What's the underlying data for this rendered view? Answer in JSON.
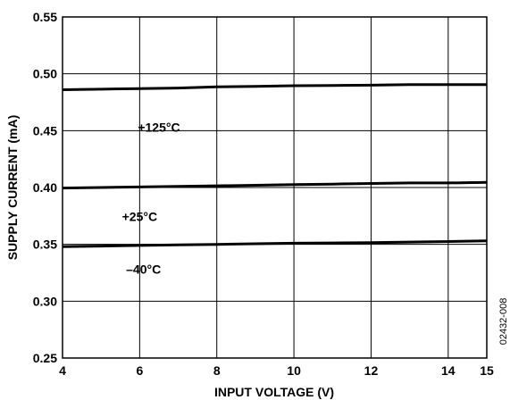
{
  "chart_data": {
    "type": "line",
    "xlabel": "INPUT VOLTAGE (V)",
    "ylabel": "SUPPLY CURRENT (mA)",
    "xlim": [
      4,
      15
    ],
    "ylim": [
      0.25,
      0.55
    ],
    "x_ticks": [
      4,
      6,
      8,
      10,
      12,
      14,
      15
    ],
    "x_tick_labels": [
      "4",
      "6",
      "8",
      "10",
      "12",
      "14",
      "15"
    ],
    "y_ticks": [
      0.25,
      0.3,
      0.35,
      0.4,
      0.45,
      0.5,
      0.55
    ],
    "y_tick_labels": [
      "0.25",
      "0.30",
      "0.35",
      "0.40",
      "0.45",
      "0.50",
      "0.55"
    ],
    "grid": true,
    "figure_id": "02432-008",
    "series": [
      {
        "name": "+125°C",
        "x": [
          4,
          5,
          6,
          7,
          8,
          9,
          10,
          11,
          12,
          13,
          14,
          15
        ],
        "y": [
          0.486,
          0.4865,
          0.487,
          0.4875,
          0.4885,
          0.489,
          0.4895,
          0.4898,
          0.49,
          0.4905,
          0.4905,
          0.4905
        ]
      },
      {
        "name": "+25°C",
        "x": [
          4,
          5,
          6,
          7,
          8,
          9,
          10,
          11,
          12,
          13,
          14,
          15
        ],
        "y": [
          0.3995,
          0.4,
          0.4005,
          0.401,
          0.4015,
          0.402,
          0.4025,
          0.403,
          0.4035,
          0.404,
          0.404,
          0.4045
        ]
      },
      {
        "name": "–40°C",
        "x": [
          4,
          5,
          6,
          7,
          8,
          9,
          10,
          11,
          12,
          13,
          14,
          15
        ],
        "y": [
          0.348,
          0.3485,
          0.349,
          0.3495,
          0.35,
          0.3505,
          0.351,
          0.3512,
          0.3515,
          0.352,
          0.3525,
          0.353
        ]
      }
    ]
  }
}
